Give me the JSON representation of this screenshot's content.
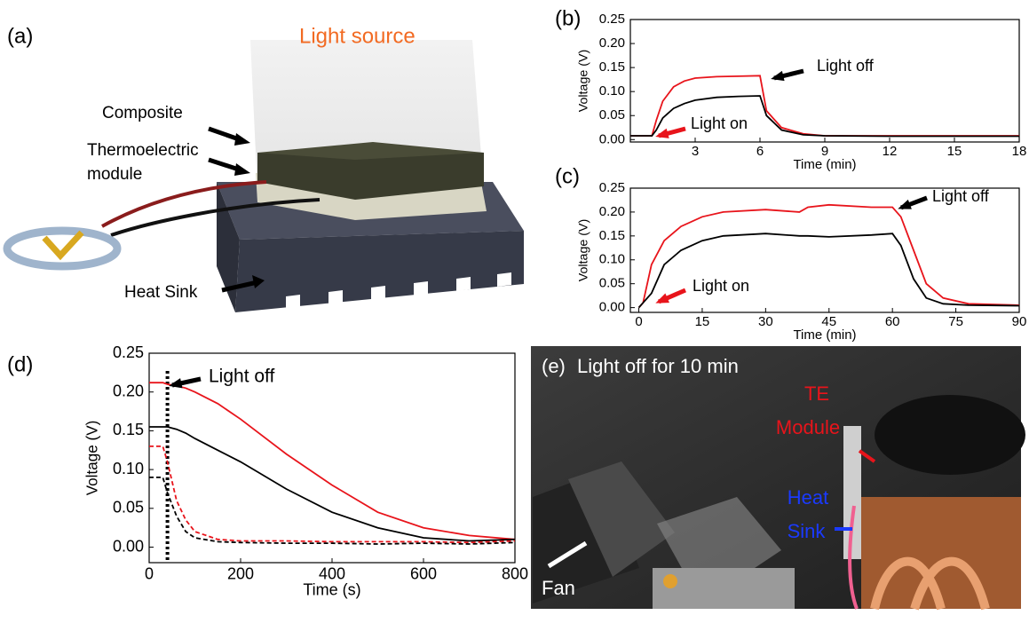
{
  "panel_a": {
    "label": "(a)",
    "light_source": "Light source",
    "composite": "Composite",
    "thermoelectric_module": [
      "Thermoelectric",
      "module"
    ],
    "heat_sink": "Heat Sink"
  },
  "panel_e": {
    "label": "(e)",
    "caption": "Light off for 10 min",
    "te_module": [
      "TE",
      "Module"
    ],
    "heat_sink": [
      "Heat",
      "Sink"
    ],
    "fan": "Fan"
  },
  "chart_data": [
    {
      "type": "line",
      "panel_label": "(b)",
      "x_label": "Time (min)",
      "y_label": "Voltage (V)",
      "annotations": [
        "Light off",
        "Light on"
      ],
      "x": [
        0,
        1,
        1.2,
        1.5,
        2,
        2.5,
        3,
        4,
        5,
        6,
        6.3,
        7,
        8,
        9,
        12,
        15,
        18
      ],
      "xlim": [
        0,
        18
      ],
      "xticks": [
        3,
        6,
        9,
        12,
        15,
        18
      ],
      "ylim": [
        -0.005,
        0.25
      ],
      "yticks": [
        {
          "value": 0,
          "label": "0.00"
        },
        0.05,
        {
          "value": 0.1,
          "label": "0.10"
        },
        0.15,
        {
          "value": 0.2,
          "label": "0.20"
        },
        0.25
      ],
      "series": [
        {
          "color": "#e8141b",
          "values": [
            0.008,
            0.008,
            0.04,
            0.08,
            0.11,
            0.122,
            0.128,
            0.131,
            0.132,
            0.133,
            0.06,
            0.025,
            0.012,
            0.008,
            0.008,
            0.008,
            0.008
          ]
        },
        {
          "color": "#000000",
          "values": [
            0.008,
            0.008,
            0.02,
            0.045,
            0.065,
            0.075,
            0.082,
            0.088,
            0.09,
            0.091,
            0.05,
            0.02,
            0.01,
            0.008,
            0.007,
            0.007,
            0.007
          ]
        }
      ]
    },
    {
      "type": "line",
      "panel_label": "(c)",
      "x_label": "Time (min)",
      "y_label": "Voltage (V)",
      "annotations": [
        "Light off",
        "Light on"
      ],
      "x": [
        0,
        1,
        3,
        6,
        10,
        15,
        20,
        30,
        38,
        40,
        45,
        55,
        60,
        62,
        65,
        68,
        72,
        78,
        90
      ],
      "xlim": [
        -2,
        90
      ],
      "xticks": [
        0,
        15,
        30,
        45,
        60,
        75,
        90
      ],
      "ylim": [
        -0.01,
        0.25
      ],
      "yticks": [
        {
          "value": 0,
          "label": "0.00"
        },
        0.05,
        {
          "value": 0.1,
          "label": "0.10"
        },
        0.15,
        {
          "value": 0.2,
          "label": "0.20"
        },
        0.25
      ],
      "series": [
        {
          "color": "#e8141b",
          "values": [
            0,
            0.01,
            0.09,
            0.14,
            0.17,
            0.19,
            0.2,
            0.205,
            0.2,
            0.21,
            0.215,
            0.21,
            0.21,
            0.19,
            0.12,
            0.05,
            0.02,
            0.008,
            0.005
          ]
        },
        {
          "color": "#000000",
          "values": [
            0,
            0.01,
            0.03,
            0.09,
            0.12,
            0.14,
            0.15,
            0.155,
            0.15,
            0.15,
            0.148,
            0.152,
            0.155,
            0.13,
            0.06,
            0.02,
            0.008,
            0.005,
            0.004
          ]
        }
      ]
    },
    {
      "type": "line",
      "panel_label": "(d)",
      "x_label": "Time (s)",
      "y_label": "Voltage (V)",
      "annotations": [
        "Light off"
      ],
      "vline_x": 40,
      "x": [
        0,
        30,
        40,
        60,
        80,
        100,
        150,
        200,
        300,
        400,
        500,
        600,
        700,
        800
      ],
      "xlim": [
        0,
        800
      ],
      "xticks": [
        0,
        200,
        400,
        600,
        800
      ],
      "ylim": [
        -0.02,
        0.25
      ],
      "yticks": [
        {
          "value": 0,
          "label": "0.00"
        },
        0.05,
        {
          "value": 0.1,
          "label": "0.10"
        },
        0.15,
        {
          "value": 0.2,
          "label": "0.20"
        },
        0.25
      ],
      "series": [
        {
          "color": "#e8141b",
          "values": [
            0.212,
            0.212,
            0.21,
            0.208,
            0.205,
            0.2,
            0.185,
            0.165,
            0.12,
            0.08,
            0.045,
            0.025,
            0.015,
            0.01
          ]
        },
        {
          "color": "#000000",
          "values": [
            0.155,
            0.155,
            0.155,
            0.152,
            0.147,
            0.14,
            0.125,
            0.11,
            0.075,
            0.045,
            0.025,
            0.012,
            0.008,
            0.01
          ]
        },
        {
          "color": "#e8141b",
          "dash": true,
          "values": [
            0.13,
            0.13,
            0.11,
            0.06,
            0.035,
            0.02,
            0.01,
            0.008,
            0.008,
            0.007,
            0.007,
            0.007,
            0.006,
            0.008
          ]
        },
        {
          "color": "#000000",
          "dash": true,
          "values": [
            0.09,
            0.09,
            0.07,
            0.04,
            0.02,
            0.012,
            0.007,
            0.006,
            0.005,
            0.005,
            0.004,
            0.005,
            0.004,
            0.006
          ]
        }
      ]
    }
  ]
}
